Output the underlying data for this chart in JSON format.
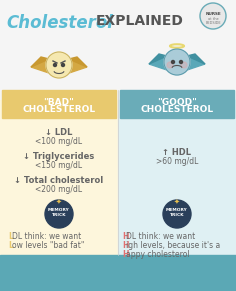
{
  "title_cursive": "Cholesterol",
  "title_rest": "EXPLAINED",
  "bg_color": "#f0f8f8",
  "header_bad_color": "#e8c96e",
  "header_good_color": "#6aacb8",
  "body_bad_color": "#fdf6dc",
  "body_good_color": "#dff0f3",
  "bottom_teal": "#5ba8b5",
  "bad_header_text": "\"BAD\"\nCHOLESTEROL",
  "good_header_text": "\"GOOD\"\nCHOLESTEROL",
  "bad_items_line1": [
    "↓ LDL",
    "↓ Triglycerides",
    "↓ Total cholesterol"
  ],
  "bad_items_line2": [
    "<100 mg/dL",
    "<150 mg/dL",
    "<200 mg/dL"
  ],
  "good_item_line1": "↑ HDL",
  "good_item_line2": ">60 mg/dL",
  "bad_L_color": "#e8c96e",
  "good_H_color": "#e07070",
  "text_color": "#666666",
  "header_text_color": "#ffffff",
  "title_cursive_color": "#5bbcd4",
  "title_rest_color": "#555555",
  "badge_color": "#2a3f5a",
  "badge_star_color": "#e8c050",
  "wing_bad_color": "#d4a843",
  "wing_good_color": "#5aa8b8",
  "body_bad_char_color": "#f5e8b0",
  "body_good_char_color": "#aaccd8",
  "halo_color": "#e8d870"
}
